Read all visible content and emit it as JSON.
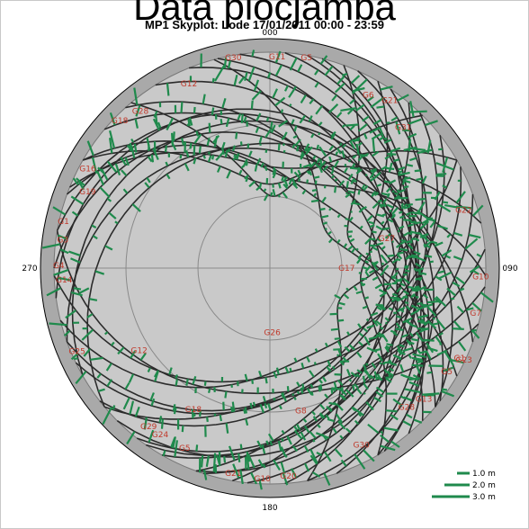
{
  "slide": {
    "title": "Data plocjamba"
  },
  "chart_data": {
    "type": "scatter",
    "subtype": "polar-skyplot",
    "title": "MP1 Skyplot: Lode 17/01/2011 00:00 - 23:59",
    "azimuth_labels": [
      {
        "text": "000",
        "az": 0
      },
      {
        "text": "090",
        "az": 90
      },
      {
        "text": "180",
        "az": 180
      },
      {
        "text": "270",
        "az": 270
      }
    ],
    "elevation_rings_deg": [
      0,
      30,
      60
    ],
    "legend": {
      "position": "bottom-right",
      "entries": [
        {
          "label": "1.0 m",
          "value": 1.0
        },
        {
          "label": "2.0 m",
          "value": 2.0
        },
        {
          "label": "3.0 m",
          "value": 3.0
        }
      ]
    },
    "colors": {
      "track": "#2b2b2b",
      "multipath": "#1f8a4c",
      "satellite_label": "#c0392b",
      "sky_fill": "#c9c9c9",
      "rim_fill": "#a9a9a9"
    },
    "satellite_labels": [
      {
        "prn": "G5",
        "az": 10,
        "el": 2
      },
      {
        "prn": "G30",
        "az": 350,
        "el": 2
      },
      {
        "prn": "G11",
        "az": 2,
        "el": 3
      },
      {
        "prn": "G6",
        "az": 30,
        "el": 8
      },
      {
        "prn": "G21",
        "az": 36,
        "el": 5
      },
      {
        "prn": "G31",
        "az": 44,
        "el": 10
      },
      {
        "prn": "G12",
        "az": 336,
        "el": 7
      },
      {
        "prn": "G28",
        "az": 320,
        "el": 6
      },
      {
        "prn": "G18",
        "az": 314,
        "el": 3
      },
      {
        "prn": "G16",
        "az": 298,
        "el": 4
      },
      {
        "prn": "G19",
        "az": 292,
        "el": 8
      },
      {
        "prn": "G1",
        "az": 282,
        "el": 2
      },
      {
        "prn": "G3",
        "az": 277,
        "el": 3
      },
      {
        "prn": "G4",
        "az": 270,
        "el": 2
      },
      {
        "prn": "G14",
        "az": 266,
        "el": 4
      },
      {
        "prn": "G25",
        "az": 246,
        "el": 2
      },
      {
        "prn": "G12",
        "az": 237,
        "el": 25
      },
      {
        "prn": "G22",
        "az": 74,
        "el": 6
      },
      {
        "prn": "G10",
        "az": 93,
        "el": 2
      },
      {
        "prn": "G27",
        "az": 77,
        "el": 40
      },
      {
        "prn": "G7",
        "az": 103,
        "el": 2
      },
      {
        "prn": "G1",
        "az": 116,
        "el": 2
      },
      {
        "prn": "G23",
        "az": 116,
        "el": 0
      },
      {
        "prn": "G5",
        "az": 121,
        "el": 4
      },
      {
        "prn": "G13",
        "az": 131,
        "el": 5
      },
      {
        "prn": "G28",
        "az": 136,
        "el": 8
      },
      {
        "prn": "G8",
        "az": 168,
        "el": 28
      },
      {
        "prn": "G30",
        "az": 153,
        "el": 6
      },
      {
        "prn": "G21",
        "az": 190,
        "el": 2
      },
      {
        "prn": "G10",
        "az": 182,
        "el": 1
      },
      {
        "prn": "G20",
        "az": 175,
        "el": 2
      },
      {
        "prn": "G5",
        "az": 205,
        "el": 6
      },
      {
        "prn": "G24",
        "az": 213,
        "el": 6
      },
      {
        "prn": "G29",
        "az": 217,
        "el": 6
      },
      {
        "prn": "G18",
        "az": 208,
        "el": 22
      },
      {
        "prn": "G26",
        "az": 178,
        "el": 62
      },
      {
        "prn": "G17",
        "az": 92,
        "el": 58
      }
    ]
  }
}
